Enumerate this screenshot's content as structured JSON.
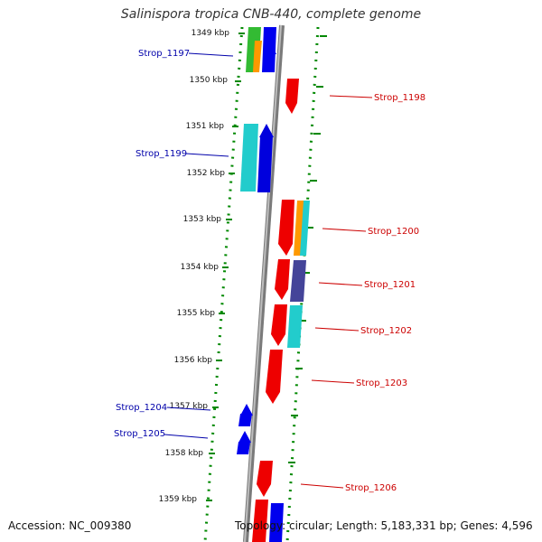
{
  "title": "Salinispora tropica CNB-440, complete genome",
  "footer": {
    "accession": "Accession: NC_009380",
    "stats": "Topology: circular; Length: 5,183,331 bp; Genes: 4,596"
  },
  "colors": {
    "forward_label": "#0000aa",
    "reverse_label": "#cc0000",
    "ruler": "#007700",
    "backbone": "#888888"
  },
  "ruler_labels": [
    "1349 kbp",
    "1350 kbp",
    "1351 kbp",
    "1352 kbp",
    "1353 kbp",
    "1354 kbp",
    "1355 kbp",
    "1356 kbp",
    "1357 kbp",
    "1358 kbp",
    "1359 kbp"
  ],
  "genes": [
    {
      "label": "Strop_1197",
      "strand": "forward"
    },
    {
      "label": "Strop_1198",
      "strand": "reverse"
    },
    {
      "label": "Strop_1199",
      "strand": "forward"
    },
    {
      "label": "Strop_1200",
      "strand": "reverse"
    },
    {
      "label": "Strop_1201",
      "strand": "reverse"
    },
    {
      "label": "Strop_1202",
      "strand": "reverse"
    },
    {
      "label": "Strop_1203",
      "strand": "reverse"
    },
    {
      "label": "Strop_1204",
      "strand": "forward"
    },
    {
      "label": "Strop_1205",
      "strand": "forward"
    },
    {
      "label": "Strop_1206",
      "strand": "reverse"
    }
  ]
}
